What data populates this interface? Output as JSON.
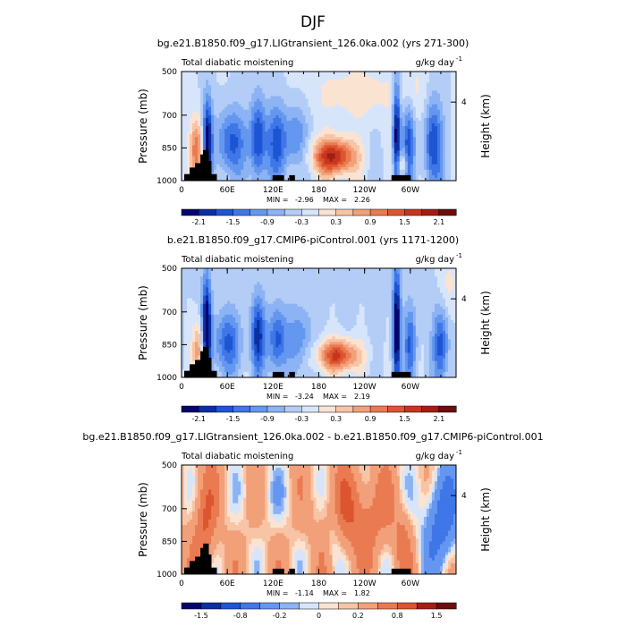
{
  "figure_title": "DJF",
  "chart_data": [
    {
      "type": "heatmap",
      "title": "bg.e21.B1850.f09_g17.LIGtransient_126.0ka.002 (yrs 271-300)",
      "left_label": "Total diabatic moistening",
      "right_label": "g/kg day",
      "right_label_exp": "-1",
      "ylabel": "Pressure (mb)",
      "ylabel_right": "Height (km)",
      "x_ticks": [
        "0",
        "60E",
        "120E",
        "180",
        "120W",
        "60W"
      ],
      "y_ticks": [
        "500",
        "700",
        "850",
        "1000"
      ],
      "right_ticks": [
        "4"
      ],
      "stats": {
        "min_label": "MIN =",
        "min": "-2.96",
        "max_label": "MAX =",
        "max": "2.26"
      },
      "colorbar_labels": [
        "-2.1",
        "-1.5",
        "-0.9",
        "-0.3",
        "0.3",
        "0.9",
        "1.5",
        "2.1"
      ],
      "levels": [
        -2.4,
        -2.1,
        -1.8,
        -1.5,
        -1.2,
        -0.9,
        -0.6,
        -0.3,
        0,
        0.3,
        0.6,
        0.9,
        1.2,
        1.5,
        1.8,
        2.1,
        2.4
      ],
      "colors": [
        "#05056e",
        "#0b2fa3",
        "#1d55d4",
        "#3f76e8",
        "#6497ef",
        "#8cb3f3",
        "#b3cdf7",
        "#d7e5fb",
        "#fbe3d2",
        "#f7c4a5",
        "#f2a079",
        "#ea7a51",
        "#dd5530",
        "#c6361d",
        "#a31d13",
        "#6e0b0b"
      ]
    },
    {
      "type": "heatmap",
      "title": "b.e21.B1850.f09_g17.CMIP6-piControl.001 (yrs 1171-1200)",
      "left_label": "Total diabatic moistening",
      "right_label": "g/kg day",
      "right_label_exp": "-1",
      "ylabel": "Pressure (mb)",
      "ylabel_right": "Height (km)",
      "x_ticks": [
        "0",
        "60E",
        "120E",
        "180",
        "120W",
        "60W"
      ],
      "y_ticks": [
        "500",
        "700",
        "850",
        "1000"
      ],
      "right_ticks": [
        "4"
      ],
      "stats": {
        "min_label": "MIN =",
        "min": "-3.24",
        "max_label": "MAX =",
        "max": "2.19"
      },
      "colorbar_labels": [
        "-2.1",
        "-1.5",
        "-0.9",
        "-0.3",
        "0.3",
        "0.9",
        "1.5",
        "2.1"
      ],
      "levels": [
        -2.4,
        -2.1,
        -1.8,
        -1.5,
        -1.2,
        -0.9,
        -0.6,
        -0.3,
        0,
        0.3,
        0.6,
        0.9,
        1.2,
        1.5,
        1.8,
        2.1,
        2.4
      ],
      "colors": [
        "#05056e",
        "#0b2fa3",
        "#1d55d4",
        "#3f76e8",
        "#6497ef",
        "#8cb3f3",
        "#b3cdf7",
        "#d7e5fb",
        "#fbe3d2",
        "#f7c4a5",
        "#f2a079",
        "#ea7a51",
        "#dd5530",
        "#c6361d",
        "#a31d13",
        "#6e0b0b"
      ]
    },
    {
      "type": "heatmap",
      "title": "bg.e21.B1850.f09_g17.LIGtransient_126.0ka.002 - b.e21.B1850.f09_g17.CMIP6-piControl.001",
      "left_label": "Total diabatic moistening",
      "right_label": "g/kg day",
      "right_label_exp": "-1",
      "ylabel": "Pressure (mb)",
      "ylabel_right": "Height (km)",
      "x_ticks": [
        "0",
        "60E",
        "120E",
        "180",
        "120W",
        "60W"
      ],
      "y_ticks": [
        "500",
        "700",
        "850",
        "1000"
      ],
      "right_ticks": [
        "4"
      ],
      "stats": {
        "min_label": "MIN =",
        "min": "-1.14",
        "max_label": "MAX =",
        "max": "1.82"
      },
      "colorbar_labels": [
        "-1.5",
        "-0.8",
        "-0.2",
        "0",
        "0.2",
        "0.8",
        "1.5"
      ],
      "levels": [
        -2,
        -1.5,
        -1.2,
        -0.8,
        -0.5,
        -0.2,
        -0.1,
        0,
        0.1,
        0.2,
        0.5,
        0.8,
        1.2,
        1.5,
        2
      ],
      "colors": [
        "#05056e",
        "#0b2fa3",
        "#1d55d4",
        "#3f76e8",
        "#6497ef",
        "#8cb3f3",
        "#d7e5fb",
        "#fbe3d2",
        "#f7c4a5",
        "#f2a079",
        "#ea7a51",
        "#dd5530",
        "#a31d13",
        "#6e0b0b"
      ]
    }
  ]
}
